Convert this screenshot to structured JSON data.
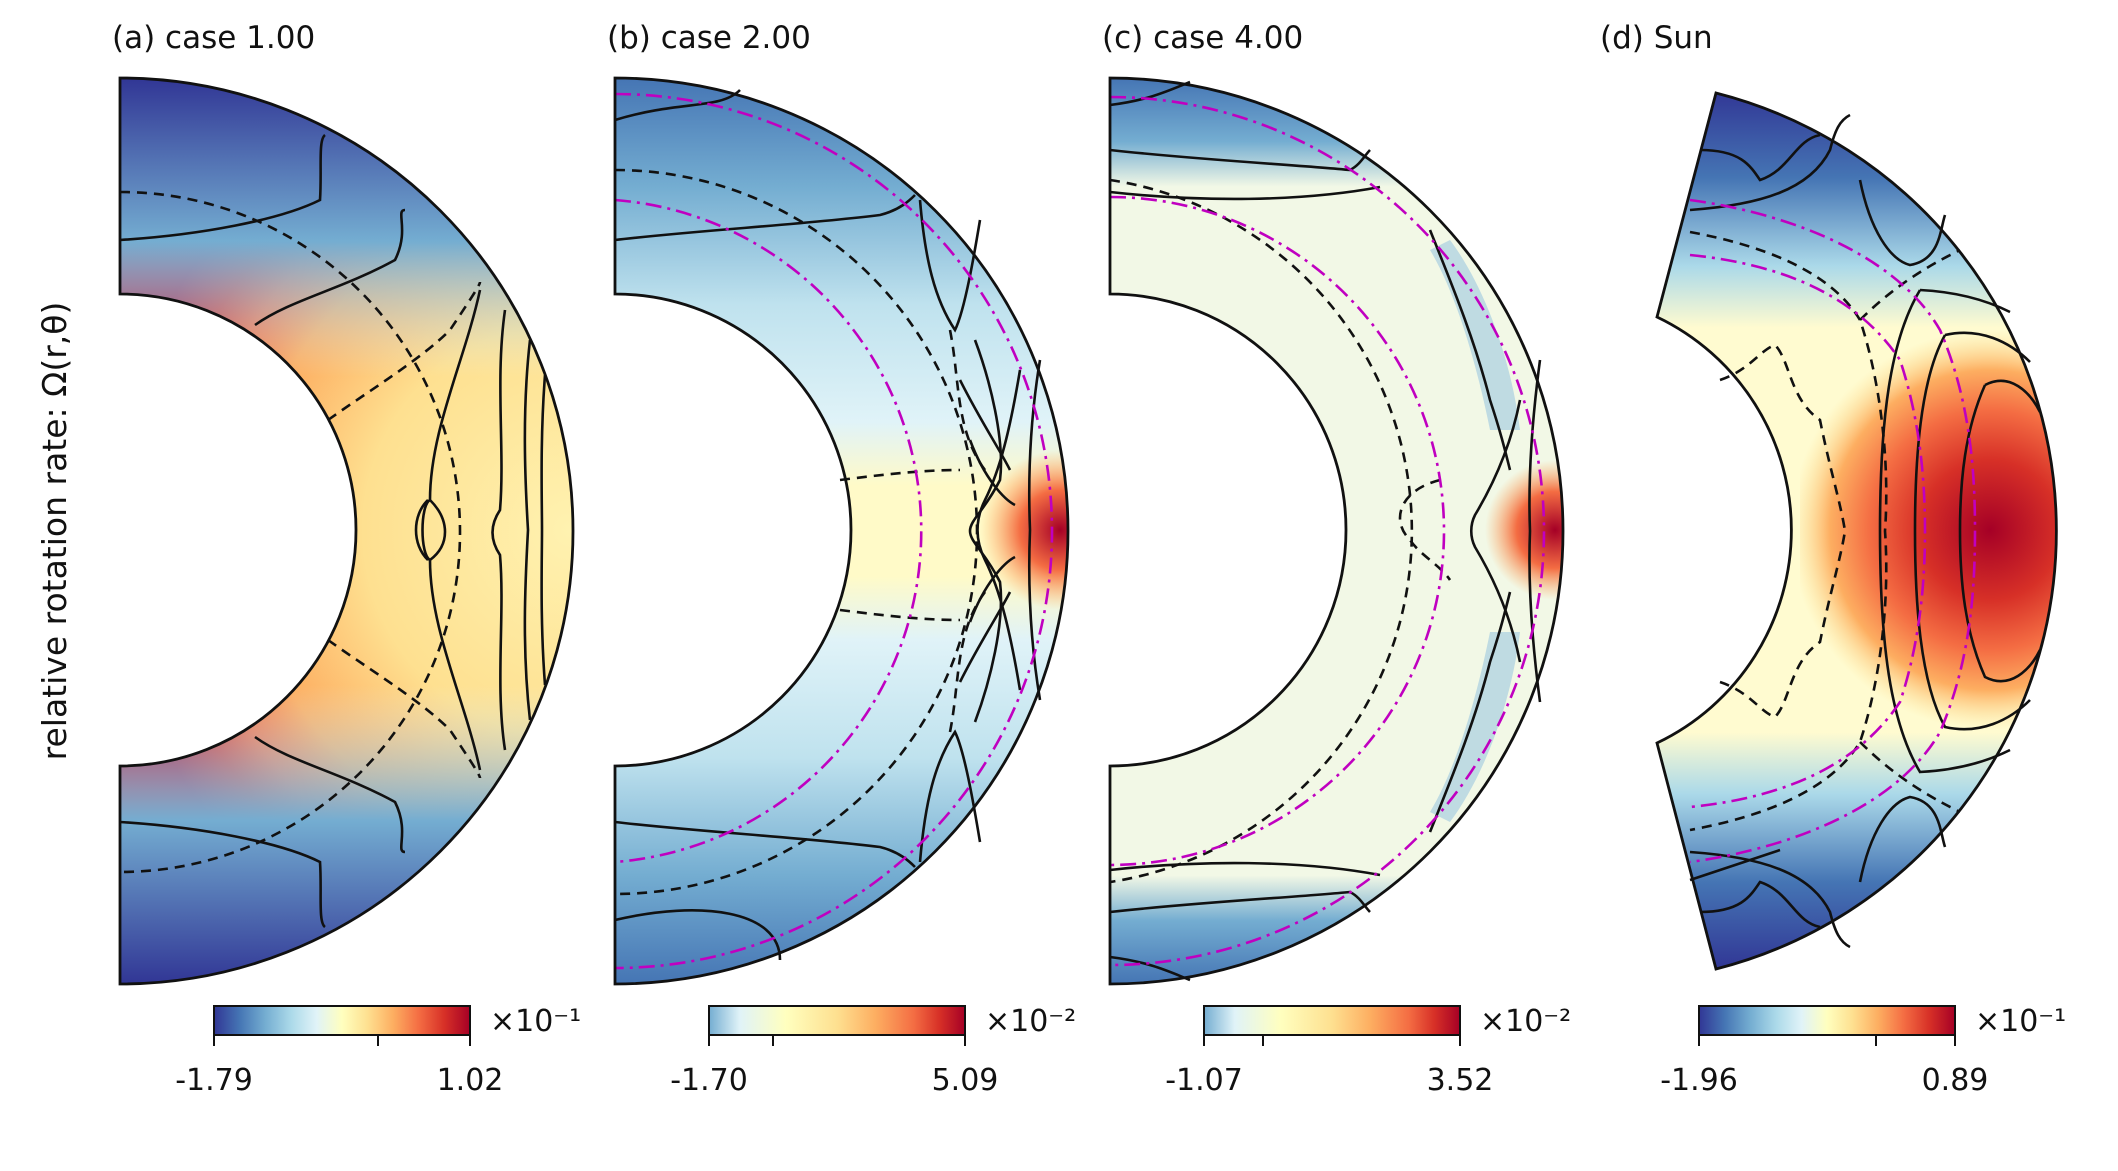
{
  "ylabel": "relative rotation rate: Ω(r,θ)",
  "colormap": [
    "#313695",
    "#4575b4",
    "#74add1",
    "#abd9e9",
    "#e0f3f8",
    "#ffffbf",
    "#fee090",
    "#fdae61",
    "#f46d43",
    "#d73027",
    "#a50026"
  ],
  "line_colors": {
    "contour": "#111111",
    "tachocline": "#c000c0"
  },
  "panels": [
    {
      "title": "(a) case 1.00",
      "cbar_min": "-1.79",
      "cbar_max": "1.02",
      "cbar_exp": "×10⁻¹"
    },
    {
      "title": "(b) case 2.00",
      "cbar_min": "-1.70",
      "cbar_max": "5.09",
      "cbar_exp": "×10⁻²"
    },
    {
      "title": "(c) case 4.00",
      "cbar_min": "-1.07",
      "cbar_max": "3.52",
      "cbar_exp": "×10⁻²"
    },
    {
      "title": "(d) Sun",
      "cbar_min": "-1.96",
      "cbar_max": "0.89",
      "cbar_exp": "×10⁻¹"
    }
  ]
}
